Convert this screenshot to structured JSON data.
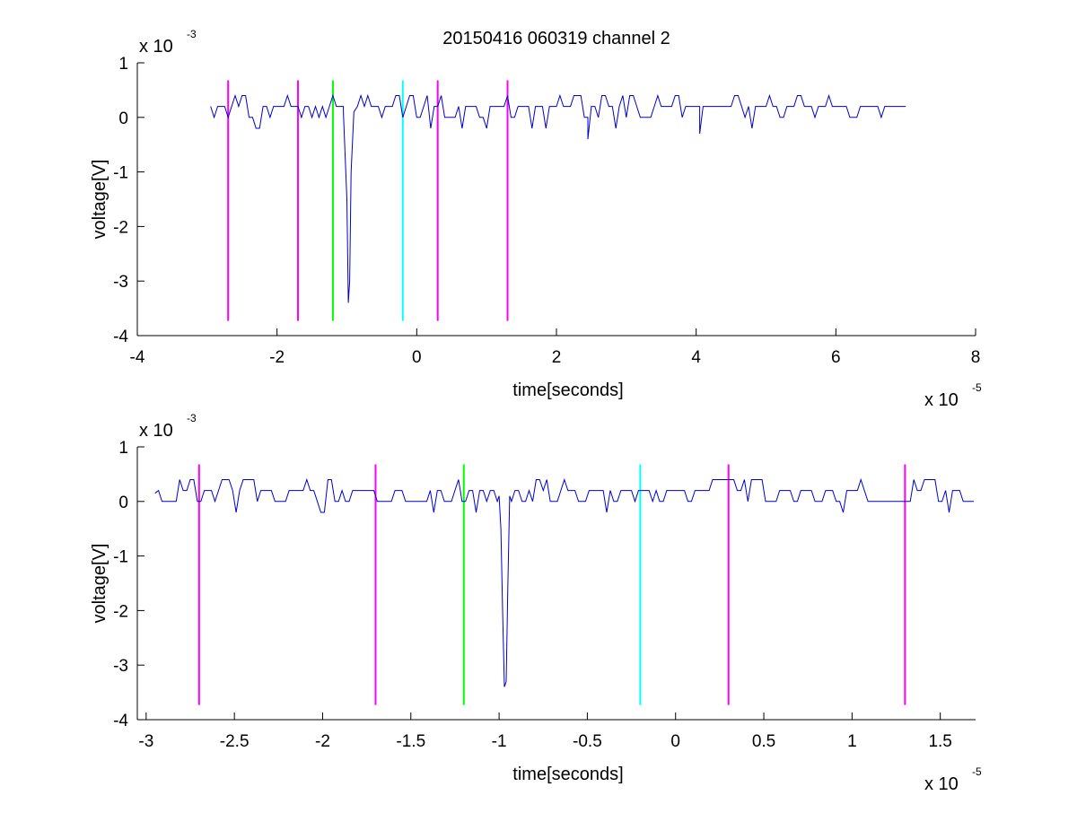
{
  "figure": {
    "title": "20150416 060319 channel 2"
  },
  "chart_data": [
    {
      "type": "line",
      "xlabel": "time[seconds]",
      "ylabel": "voltage[V]",
      "x_exponent_label": {
        "base": "x 10",
        "exp": "-5"
      },
      "y_exponent_label": {
        "base": "x 10",
        "exp": "-3"
      },
      "xlim": [
        -4,
        8
      ],
      "ylim": [
        -4,
        1
      ],
      "xticks": [
        -4,
        -2,
        0,
        2,
        4,
        6,
        8
      ],
      "xtick_labels": [
        "-4",
        "-2",
        "0",
        "2",
        "4",
        "6",
        "8"
      ],
      "yticks": [
        -4,
        -3,
        -2,
        -1,
        0,
        1
      ],
      "ytick_labels": [
        "-4",
        "-3",
        "-2",
        "-1",
        "0",
        "1"
      ],
      "grid": false,
      "series": [
        {
          "color": "#0000cc",
          "x_range": [
            -2.95,
            7.0
          ],
          "noise_baseline": 0.15,
          "noise_levels": [
            -0.2,
            0.0,
            0.2,
            0.4
          ],
          "dip": {
            "x": [
              -1.05,
              -1.0,
              -0.98,
              -0.96,
              -0.94,
              -0.9
            ],
            "y": [
              0.1,
              -1.5,
              -3.4,
              -3.0,
              -1.0,
              0.1
            ]
          },
          "extra_dips": [
            {
              "x": 2.45,
              "y": -0.4
            },
            {
              "x": 4.05,
              "y": -0.3
            }
          ]
        }
      ],
      "vertical_markers": [
        {
          "x": -2.7,
          "color": "#ff00ff"
        },
        {
          "x": -1.7,
          "color": "#ff00ff"
        },
        {
          "x": -1.2,
          "color": "#00ff00"
        },
        {
          "x": -0.2,
          "color": "#00ffff"
        },
        {
          "x": 0.3,
          "color": "#ff00ff"
        },
        {
          "x": 1.3,
          "color": "#ff00ff"
        }
      ],
      "marker_y_range": [
        -3.73,
        0.68
      ]
    },
    {
      "type": "line",
      "xlabel": "time[seconds]",
      "ylabel": "voltage[V]",
      "x_exponent_label": {
        "base": "x 10",
        "exp": "-5"
      },
      "y_exponent_label": {
        "base": "x 10",
        "exp": "-3"
      },
      "xlim": [
        -3.05,
        1.7
      ],
      "ylim": [
        -4,
        1
      ],
      "xticks": [
        -3,
        -2.5,
        -2,
        -1.5,
        -1,
        -0.5,
        0,
        0.5,
        1,
        1.5
      ],
      "xtick_labels": [
        "-3",
        "-2.5",
        "-2",
        "-1.5",
        "-1",
        "-0.5",
        "0",
        "0.5",
        "1",
        "1.5"
      ],
      "yticks": [
        -4,
        -3,
        -2,
        -1,
        0,
        1
      ],
      "ytick_labels": [
        "-4",
        "-3",
        "-2",
        "-1",
        "0",
        "1"
      ],
      "grid": false,
      "series": [
        {
          "color": "#0000cc",
          "x_range": [
            -2.95,
            1.7
          ],
          "noise_baseline": 0.15,
          "noise_levels": [
            -0.2,
            0.0,
            0.2,
            0.4
          ],
          "dip": {
            "x": [
              -1.0,
              -0.99,
              -0.98,
              -0.97,
              -0.96,
              -0.95,
              -0.94
            ],
            "y": [
              0.1,
              -0.5,
              -2.0,
              -3.4,
              -3.3,
              -1.5,
              0.1
            ]
          },
          "extra_dips": []
        }
      ],
      "vertical_markers": [
        {
          "x": -2.7,
          "color": "#ff00ff"
        },
        {
          "x": -1.7,
          "color": "#ff00ff"
        },
        {
          "x": -1.2,
          "color": "#00ff00"
        },
        {
          "x": -0.2,
          "color": "#00ffff"
        },
        {
          "x": 0.3,
          "color": "#ff00ff"
        },
        {
          "x": 1.3,
          "color": "#ff00ff"
        }
      ],
      "marker_y_range": [
        -3.73,
        0.68
      ]
    }
  ]
}
